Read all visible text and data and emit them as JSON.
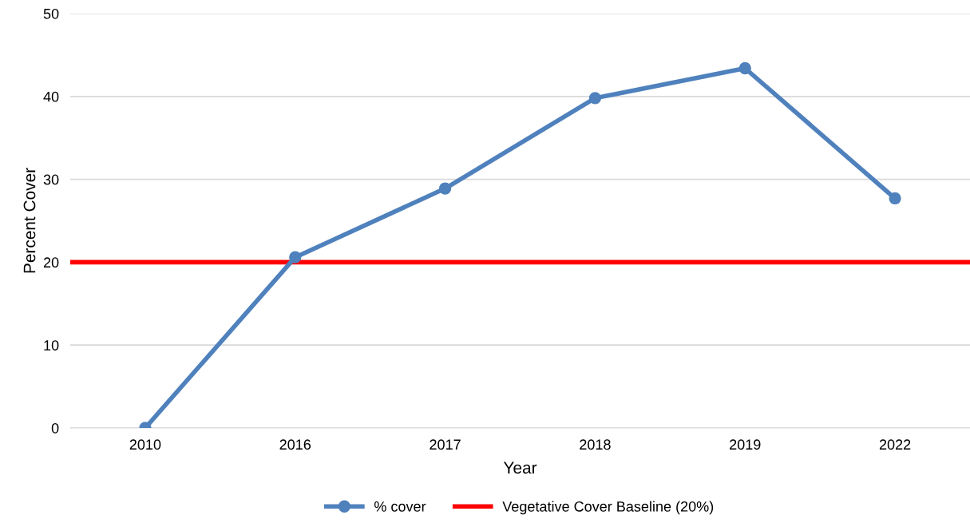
{
  "chart_data": {
    "type": "line",
    "xlabel": "Year",
    "ylabel": "Percent Cover",
    "categories": [
      "2010",
      "2016",
      "2017",
      "2018",
      "2019",
      "2022"
    ],
    "series": [
      {
        "name": "% cover",
        "color": "#4f81bd",
        "values": [
          0,
          20.6,
          28.9,
          39.8,
          43.4,
          27.7
        ]
      }
    ],
    "ref_lines": [
      {
        "axis": "y",
        "value": 20,
        "label": "Vegetative Cover Baseline (20%)",
        "color": "#ff0000",
        "line_style": "solid"
      }
    ],
    "ylim": [
      0,
      50
    ],
    "yticks": [
      0,
      10,
      20,
      30,
      40,
      50
    ],
    "grid": "y",
    "legend": "bottom",
    "marker": "circle",
    "line_style": "solid"
  }
}
